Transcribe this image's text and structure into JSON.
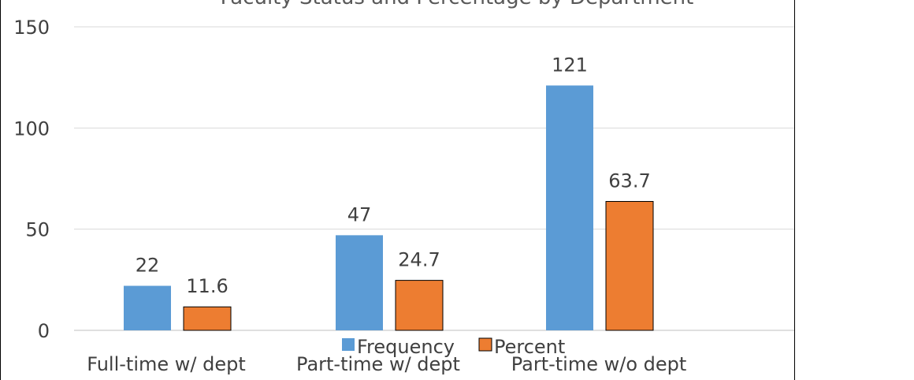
{
  "chart_data": {
    "type": "bar",
    "title": "Faculty Status and Percentage by Department",
    "categories": [
      "Full-time w/ dept",
      "Part-time w/ dept",
      "Part-time w/o dept"
    ],
    "series": [
      {
        "name": "Frequency",
        "values": [
          22,
          47,
          121
        ],
        "data_labels": [
          "22",
          "47",
          "121"
        ],
        "color": "#5b9bd5"
      },
      {
        "name": "Percent",
        "values": [
          11.6,
          24.7,
          63.7
        ],
        "data_labels": [
          "11.6",
          "24.7",
          "63.7"
        ],
        "color": "#ed7d31"
      }
    ],
    "y_ticks": [
      0,
      50,
      100,
      150
    ],
    "y_tick_labels": [
      "0",
      "50",
      "100",
      "150"
    ],
    "ylim": [
      0,
      150
    ],
    "grid": true,
    "legend": "bottom-center"
  }
}
